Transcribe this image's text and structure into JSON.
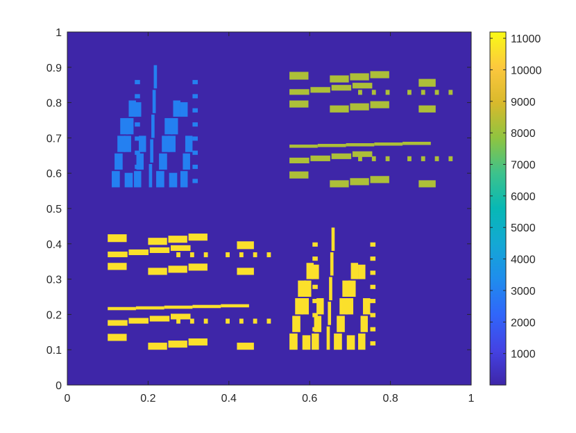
{
  "chart_data": {
    "type": "heatmap",
    "title": "",
    "xlabel": "",
    "ylabel": "",
    "xlim": [
      0,
      1
    ],
    "ylim": [
      0,
      1
    ],
    "xticks": [
      "0",
      "0.2",
      "0.4",
      "0.6",
      "0.8",
      "1"
    ],
    "yticks": [
      "0",
      "0.1",
      "0.2",
      "0.3",
      "0.4",
      "0.5",
      "0.6",
      "0.7",
      "0.8",
      "0.9",
      "1"
    ],
    "colormap": "parula",
    "clim": [
      1,
      11200
    ],
    "colorbar": {
      "position": "right",
      "ticks": [
        "1000",
        "2000",
        "3000",
        "4000",
        "5000",
        "6000",
        "7000",
        "8000",
        "9000",
        "10000",
        "11000"
      ]
    },
    "background_value": 1,
    "regions": [
      {
        "name": "top-left",
        "value": 3000,
        "pattern": "vertical",
        "xrange": [
          0.11,
          0.44
        ],
        "yrange": [
          0.56,
          0.9
        ]
      },
      {
        "name": "top-right",
        "value": 8300,
        "pattern": "horizontal",
        "xrange": [
          0.55,
          0.9
        ],
        "yrange": [
          0.56,
          0.87
        ]
      },
      {
        "name": "bottom-left",
        "value": 10600,
        "pattern": "horizontal",
        "xrange": [
          0.1,
          0.45
        ],
        "yrange": [
          0.1,
          0.44
        ]
      },
      {
        "name": "bottom-right",
        "value": 10600,
        "pattern": "vertical",
        "xrange": [
          0.55,
          0.88
        ],
        "yrange": [
          0.1,
          0.44
        ]
      }
    ]
  }
}
